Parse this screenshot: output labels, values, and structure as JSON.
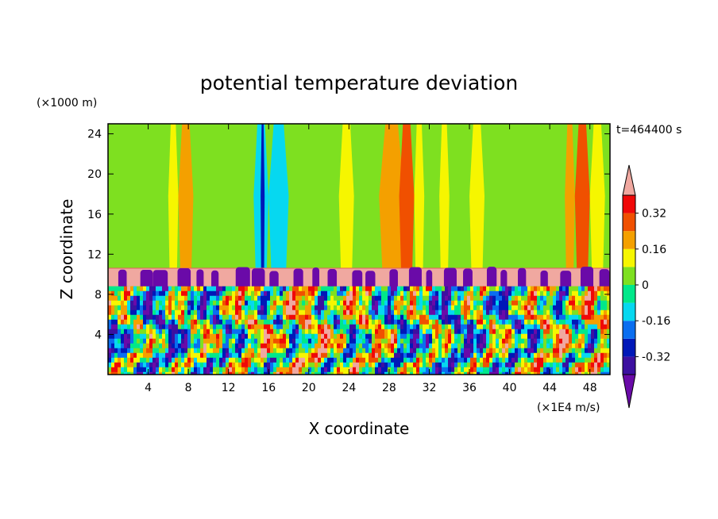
{
  "chart_data": {
    "type": "heatmap",
    "title": "potential temperature deviation",
    "xlabel": "X coordinate",
    "ylabel": "Z coordinate",
    "x_unit": "(×1E4 m/s)",
    "y_unit": "(×1000 m)",
    "time_label": "t=464400 s",
    "xlim": [
      0,
      50
    ],
    "ylim": [
      0,
      25
    ],
    "x_ticks": [
      4,
      8,
      12,
      16,
      20,
      24,
      28,
      32,
      36,
      40,
      44,
      48
    ],
    "y_ticks": [
      4,
      8,
      12,
      16,
      20,
      24
    ],
    "colorbar": {
      "levels": [
        -0.4,
        -0.32,
        -0.24,
        -0.16,
        -0.08,
        0,
        0.08,
        0.16,
        0.24,
        0.32,
        0.4
      ],
      "labeled_ticks": [
        "0.32",
        "0.16",
        "0",
        "-0.16",
        "-0.32"
      ],
      "tick_values": [
        0.32,
        0.16,
        0,
        -0.16,
        -0.32
      ],
      "colors": [
        "#6a0aa8",
        "#3c10a0",
        "#0018b8",
        "#0a6ef0",
        "#06d8f0",
        "#00e88a",
        "#7ee020",
        "#f6f600",
        "#f4a000",
        "#f05000",
        "#f00808",
        "#f0a8a0"
      ],
      "over_color": "#f0a8a0",
      "under_color": "#6a0aa8"
    },
    "fields": {
      "upper_background": 0,
      "inversion_layer_z": [
        8.8,
        10.6
      ],
      "inversion_layer_value": 0.45,
      "lower_turbulent_layer_z": [
        0,
        8.8
      ]
    },
    "upper_bands": [
      {
        "x": [
          7.0,
          8.5
        ],
        "value": 0.16
      },
      {
        "x": [
          6.0,
          7.0
        ],
        "value": 0.08
      },
      {
        "x": [
          14.5,
          16.0
        ],
        "value": -0.16
      },
      {
        "x": [
          15.2,
          15.6
        ],
        "value": -0.28
      },
      {
        "x": [
          16.0,
          18.0
        ],
        "value": -0.1
      },
      {
        "x": [
          23.0,
          24.5
        ],
        "value": 0.1
      },
      {
        "x": [
          27.0,
          29.5
        ],
        "value": 0.16
      },
      {
        "x": [
          29.0,
          30.5
        ],
        "value": 0.24
      },
      {
        "x": [
          30.5,
          31.5
        ],
        "value": 0.08
      },
      {
        "x": [
          33.0,
          34.0
        ],
        "value": 0.1
      },
      {
        "x": [
          36.0,
          37.5
        ],
        "value": 0.1
      },
      {
        "x": [
          45.5,
          46.5
        ],
        "value": 0.16
      },
      {
        "x": [
          46.5,
          48.0
        ],
        "value": 0.26
      },
      {
        "x": [
          48.0,
          49.5
        ],
        "value": 0.12
      }
    ]
  }
}
